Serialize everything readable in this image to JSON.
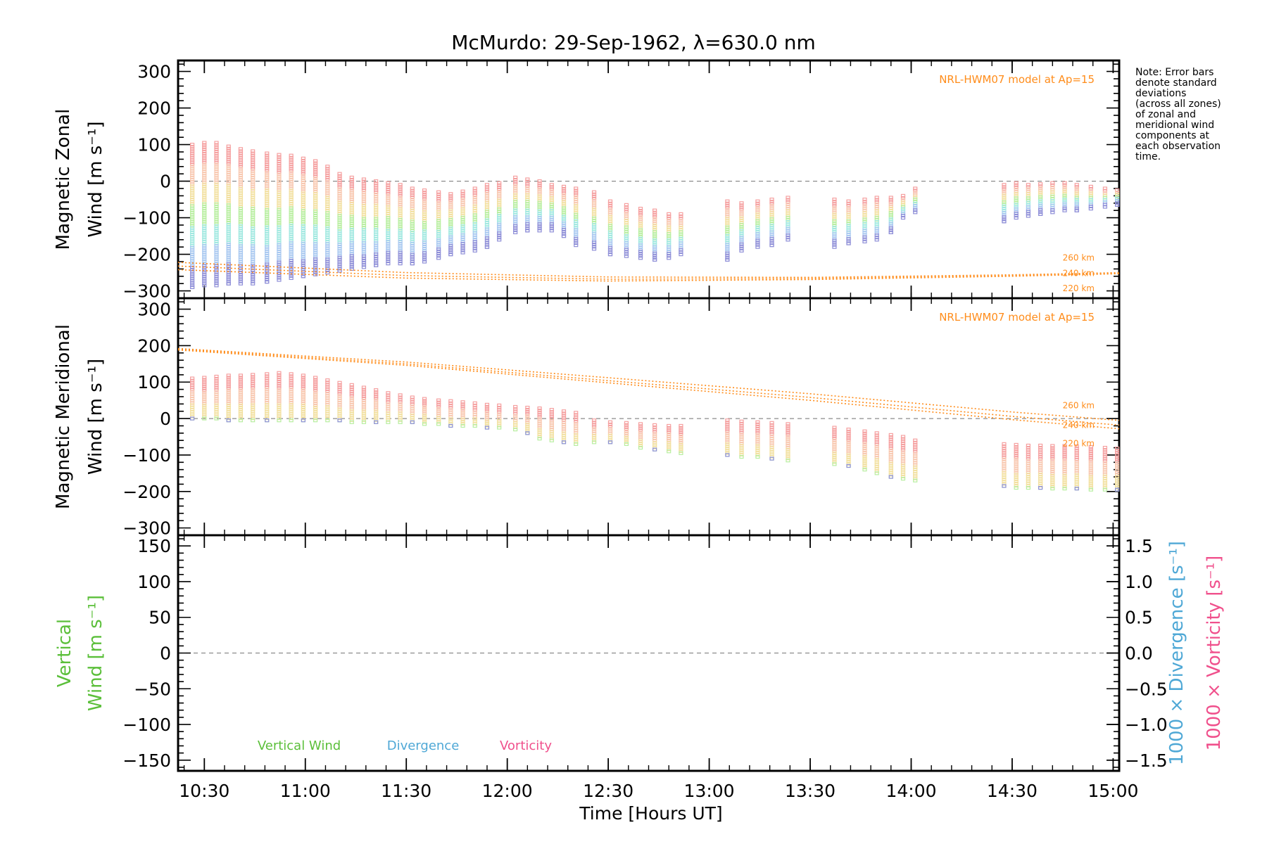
{
  "title": "McMurdo: 29-Sep-1962, λ=630.0 nm",
  "note_lines": [
    "Note: Error bars",
    "denote standard",
    "deviations",
    "(across all zones)",
    "of zonal and",
    "meridional wind",
    "components at",
    "each observation",
    "time."
  ],
  "colors": {
    "model": "#ff8c1a",
    "vertical": "#5bbf3a",
    "divergence": "#4fa8d6",
    "vorticity": "#f0508c",
    "zero_line": "#8c8c8c",
    "zone_palette": [
      "#f5a0a0",
      "#f8c8b0",
      "#f2e0a0",
      "#b8eea0",
      "#a0e8e0",
      "#a8c8f0",
      "#9090d8"
    ]
  },
  "chart_data": {
    "type": "scatter",
    "x_axis": {
      "label": "Time [Hours UT]",
      "range_hours": [
        10.37,
        15.03
      ],
      "tick_labels": [
        "10:30",
        "11:00",
        "11:30",
        "12:00",
        "12:30",
        "13:00",
        "13:30",
        "14:00",
        "14:30",
        "15:00"
      ],
      "tick_hours": [
        10.5,
        11.0,
        11.5,
        12.0,
        12.5,
        13.0,
        13.5,
        14.0,
        14.5,
        15.0
      ]
    },
    "observation_times_hours": [
      10.44,
      10.5,
      10.56,
      10.62,
      10.68,
      10.74,
      10.81,
      10.87,
      10.93,
      10.99,
      11.05,
      11.11,
      11.17,
      11.23,
      11.29,
      11.35,
      11.41,
      11.47,
      11.53,
      11.59,
      11.66,
      11.72,
      11.78,
      11.84,
      11.9,
      11.96,
      12.04,
      12.1,
      12.16,
      12.22,
      12.28,
      12.34,
      12.43,
      12.51,
      12.59,
      12.66,
      12.73,
      12.8,
      12.86,
      13.09,
      13.16,
      13.24,
      13.31,
      13.39,
      13.62,
      13.69,
      13.77,
      13.83,
      13.9,
      13.96,
      14.02,
      14.46,
      14.52,
      14.58,
      14.64,
      14.7,
      14.76,
      14.82,
      14.89,
      14.96,
      15.02
    ],
    "panels": [
      {
        "id": "zonal",
        "ylabel": [
          "Magnetic Zonal",
          "Wind [m s⁻¹]"
        ],
        "ylim": [
          -320,
          330
        ],
        "yticks": [
          -300,
          -200,
          -100,
          0,
          100,
          200,
          300
        ],
        "model_label": "NRL-HWM07 model at Ap=15",
        "model_lines": [
          {
            "name": "260 km",
            "x": [
              10.37,
              11.5,
              12.5,
              13.5,
              14.5,
              15.03
            ],
            "y": [
              -222,
              -250,
              -262,
              -263,
              -256,
              -250
            ]
          },
          {
            "name": "240 km",
            "x": [
              10.37,
              11.5,
              12.5,
              13.5,
              14.5,
              15.03
            ],
            "y": [
              -232,
              -258,
              -268,
              -266,
              -258,
              -252
            ]
          },
          {
            "name": "220 km",
            "x": [
              10.37,
              11.5,
              12.5,
              13.5,
              14.5,
              15.03
            ],
            "y": [
              -242,
              -265,
              -273,
              -269,
              -260,
              -253
            ]
          }
        ],
        "model_name_labels": [
          "260 km",
          "240 km",
          "220 km"
        ],
        "obs_top": [
          100,
          105,
          105,
          95,
          88,
          82,
          76,
          72,
          70,
          62,
          55,
          40,
          20,
          10,
          5,
          0,
          -5,
          -10,
          -20,
          -25,
          -30,
          -35,
          -28,
          -20,
          -10,
          -5,
          10,
          5,
          0,
          -10,
          -15,
          -20,
          -30,
          -55,
          -65,
          -75,
          -80,
          -90,
          -90,
          -55,
          -60,
          -55,
          -50,
          -45,
          -50,
          -55,
          -50,
          -45,
          -45,
          -40,
          -20,
          -10,
          -5,
          -10,
          -8,
          -5,
          -5,
          -10,
          -15,
          -20,
          -25
        ],
        "obs_bottom": [
          -290,
          -285,
          -285,
          -280,
          -280,
          -280,
          -275,
          -270,
          -265,
          -260,
          -255,
          -250,
          -245,
          -240,
          -235,
          -230,
          -225,
          -225,
          -225,
          -220,
          -210,
          -200,
          -195,
          -190,
          -180,
          -160,
          -140,
          -135,
          -135,
          -135,
          -150,
          -175,
          -185,
          -200,
          -205,
          -210,
          -215,
          -210,
          -200,
          -215,
          -190,
          -180,
          -175,
          -160,
          -180,
          -170,
          -165,
          -160,
          -140,
          -100,
          -85,
          -110,
          -100,
          -95,
          -90,
          -85,
          -80,
          -80,
          -75,
          -70,
          -65
        ]
      },
      {
        "id": "meridional",
        "ylabel": [
          "Magnetic Meridional",
          "Wind [m s⁻¹]"
        ],
        "ylim": [
          -320,
          330
        ],
        "yticks": [
          -300,
          -200,
          -100,
          0,
          100,
          200,
          300
        ],
        "model_label": "NRL-HWM07 model at Ap=15",
        "model_lines": [
          {
            "name": "260 km",
            "x": [
              10.37,
              11.5,
              12.5,
              13.5,
              14.5,
              15.03
            ],
            "y": [
              192,
              155,
              112,
              68,
              18,
              -5
            ]
          },
          {
            "name": "240 km",
            "x": [
              10.37,
              11.5,
              12.5,
              13.5,
              14.5,
              15.03
            ],
            "y": [
              190,
              150,
              104,
              58,
              6,
              -18
            ]
          },
          {
            "name": "220 km",
            "x": [
              10.37,
              11.5,
              12.5,
              13.5,
              14.5,
              15.03
            ],
            "y": [
              188,
              146,
              98,
              50,
              -3,
              -28
            ]
          }
        ],
        "model_name_labels": [
          "260 km",
          "240 km",
          "220 km"
        ],
        "obs_top": [
          110,
          112,
          115,
          118,
          118,
          120,
          122,
          125,
          122,
          118,
          112,
          105,
          98,
          92,
          85,
          78,
          70,
          64,
          58,
          54,
          50,
          48,
          45,
          42,
          38,
          36,
          32,
          30,
          28,
          24,
          20,
          16,
          -5,
          -10,
          -12,
          -15,
          -18,
          -20,
          -20,
          -5,
          -8,
          -10,
          -12,
          -15,
          -25,
          -30,
          -35,
          -40,
          -45,
          -50,
          -60,
          -70,
          -72,
          -74,
          -74,
          -75,
          -75,
          -76,
          -78,
          -80,
          -82
        ],
        "obs_bottom": [
          0,
          0,
          0,
          -5,
          -5,
          -5,
          -5,
          -5,
          -5,
          -5,
          -5,
          -5,
          -5,
          -10,
          -10,
          -10,
          -10,
          -10,
          -10,
          -15,
          -15,
          -20,
          -20,
          -20,
          -25,
          -25,
          -30,
          -40,
          -55,
          -60,
          -65,
          -70,
          -65,
          -65,
          -70,
          -80,
          -85,
          -90,
          -95,
          -100,
          -105,
          -105,
          -110,
          -115,
          -125,
          -130,
          -140,
          -150,
          -160,
          -165,
          -170,
          -185,
          -190,
          -190,
          -190,
          -192,
          -192,
          -192,
          -195,
          -195,
          -195
        ]
      },
      {
        "id": "vertical",
        "ylabel": [
          "Vertical",
          "Wind [m s⁻¹]"
        ],
        "ylim": [
          -165,
          165
        ],
        "yticks": [
          -150,
          -100,
          -50,
          0,
          50,
          100,
          150
        ],
        "y2label": [
          "1000 × Divergence [s⁻¹]",
          "1000 × Vorticity [s⁻¹]"
        ],
        "y2lim": [
          -1.65,
          1.65
        ],
        "y2ticks": [
          -1.5,
          -1.0,
          -0.5,
          0.0,
          0.5,
          1.0,
          1.5
        ],
        "y2tick_labels": [
          "−1.5",
          "−1.0",
          "−0.5",
          "0.0",
          "0.5",
          "1.0",
          "1.5"
        ],
        "legend": [
          "Vertical Wind",
          "Divergence",
          "Vorticity"
        ]
      }
    ]
  }
}
